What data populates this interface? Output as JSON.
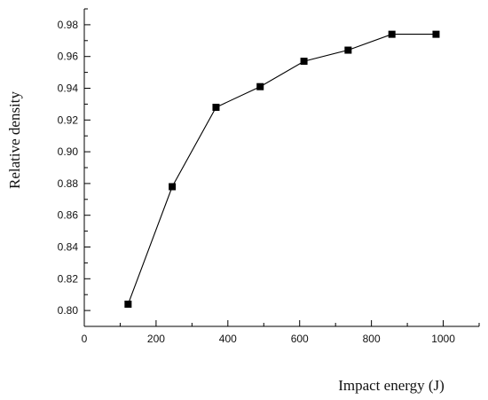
{
  "chart_data": {
    "type": "line",
    "title": "",
    "xlabel": "Impact energy (J)",
    "ylabel": "Relative density",
    "xlim": [
      0,
      1100
    ],
    "ylim": [
      0.79,
      0.99
    ],
    "x_ticks": [
      "0",
      "200",
      "400",
      "600",
      "800",
      "1000"
    ],
    "y_ticks": [
      "0.80",
      "0.82",
      "0.84",
      "0.86",
      "0.88",
      "0.90",
      "0.92",
      "0.94",
      "0.96",
      "0.98"
    ],
    "grid": false,
    "legend": "none",
    "marker": "square",
    "colors": {
      "line": "#000000",
      "marker": "#000000",
      "axis": "#000000"
    },
    "series": [
      {
        "x": [
          122,
          245,
          367,
          490,
          612,
          735,
          857,
          980
        ],
        "y": [
          0.804,
          0.878,
          0.928,
          0.941,
          0.957,
          0.964,
          0.974,
          0.974
        ]
      }
    ]
  }
}
